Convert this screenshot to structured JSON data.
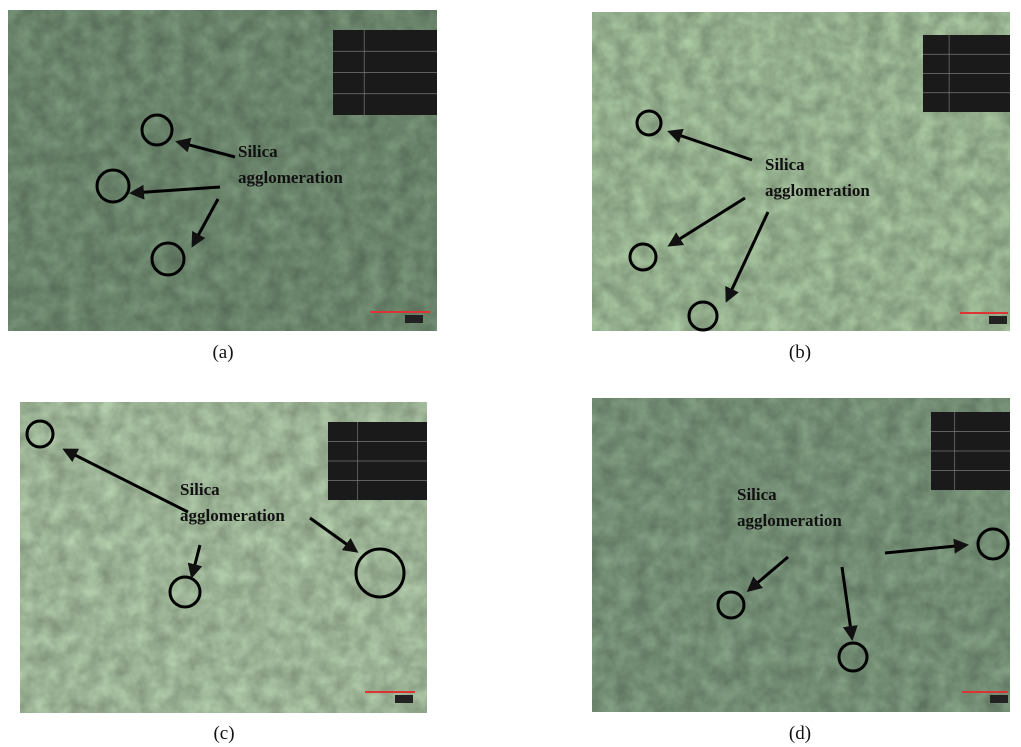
{
  "panels": [
    {
      "caption": "(a)",
      "label": [
        "Silica",
        "agglomeration"
      ]
    },
    {
      "caption": "(b)",
      "label": [
        "Silica",
        "agglomeration"
      ]
    },
    {
      "caption": "(c)",
      "label": [
        "Silica",
        "agglomeration"
      ]
    },
    {
      "caption": "(d)",
      "label": [
        "Silica",
        "agglomeration"
      ]
    }
  ]
}
